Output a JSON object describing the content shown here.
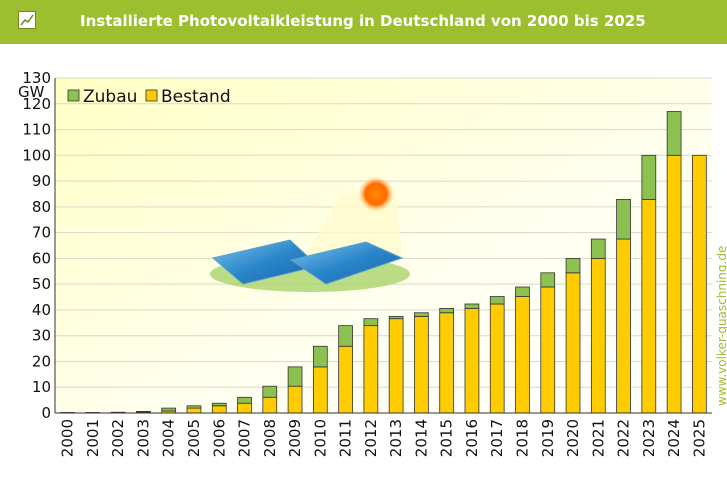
{
  "header": {
    "title": "Installierte Photovoltaikleistung in Deutschland von 2000 bis 2025",
    "icon": "line-chart-icon"
  },
  "watermark": "www.volker-quaschning.de",
  "chart_data": {
    "type": "bar",
    "stacked": true,
    "title": "Installierte Photovoltaikleistung in Deutschland von 2000 bis 2025",
    "xlabel": "",
    "ylabel": "GW",
    "ylim": [
      0,
      130
    ],
    "yticks": [
      0,
      10,
      20,
      30,
      40,
      50,
      60,
      70,
      80,
      90,
      100,
      110,
      120,
      130
    ],
    "grid": true,
    "legend_position": "top-left",
    "categories": [
      "2000",
      "2001",
      "2002",
      "2003",
      "2004",
      "2005",
      "2006",
      "2007",
      "2008",
      "2009",
      "2010",
      "2011",
      "2012",
      "2013",
      "2014",
      "2015",
      "2016",
      "2017",
      "2018",
      "2019",
      "2020",
      "2021",
      "2022",
      "2023",
      "2024",
      "2025"
    ],
    "series": [
      {
        "name": "Bestand",
        "color": "#ffcc00",
        "values": [
          0.1,
          0.1,
          0.2,
          0.4,
          0.8,
          1.9,
          2.8,
          3.8,
          6.1,
          10.4,
          17.9,
          25.9,
          33.9,
          36.6,
          37.5,
          38.9,
          40.6,
          42.3,
          45.2,
          48.9,
          54.4,
          60.0,
          67.5,
          82.9,
          100.0,
          100.0
        ]
      },
      {
        "name": "Zubau",
        "color": "#8cc152",
        "values": [
          0.1,
          0.1,
          0.1,
          0.2,
          1.1,
          0.9,
          1.0,
          2.3,
          4.3,
          7.5,
          8.0,
          8.0,
          2.7,
          0.9,
          1.4,
          1.7,
          1.7,
          2.9,
          3.7,
          5.5,
          5.6,
          7.5,
          15.4,
          17.1,
          17.0,
          0
        ]
      }
    ]
  }
}
